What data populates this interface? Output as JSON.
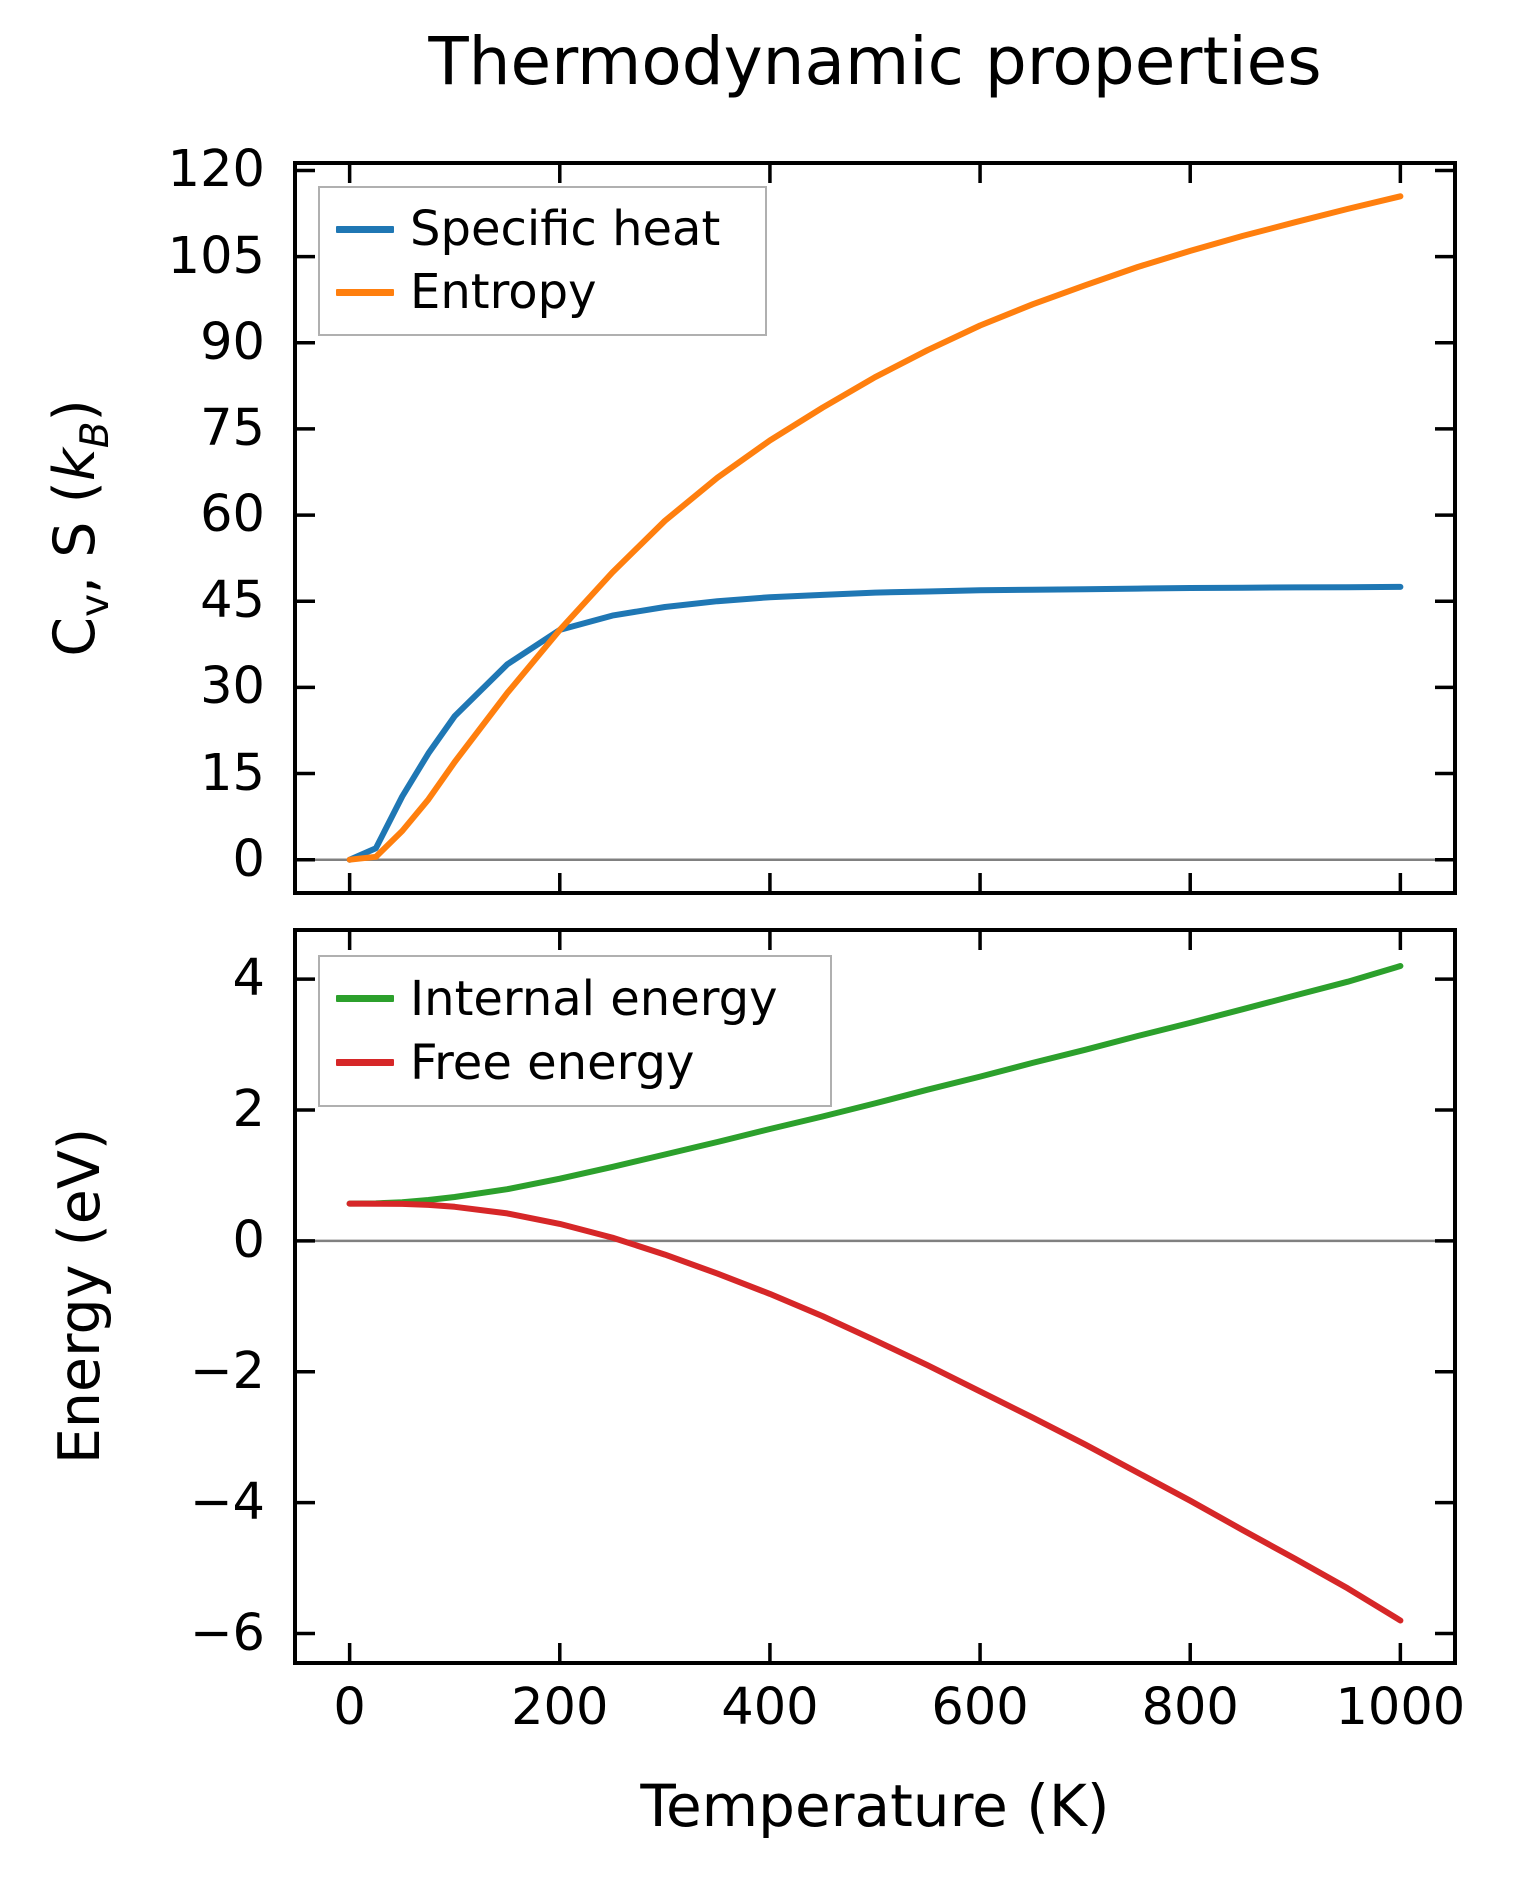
{
  "figure": {
    "title": "Thermodynamic properties",
    "xlabel": "Temperature (K)",
    "background": "#ffffff",
    "spine_color": "#000000",
    "zero_line_color": "#808080"
  },
  "chart_data": [
    {
      "type": "line",
      "panel": "top",
      "ylabel": "Cv, S (kB)",
      "ylabel_rich": [
        {
          "t": "C"
        },
        {
          "t": "v",
          "sub": true
        },
        {
          "t": ", S ("
        },
        {
          "t": "k",
          "ital": true
        },
        {
          "t": "B",
          "sub": true,
          "ital": true
        },
        {
          "t": ")"
        }
      ],
      "x": [
        0,
        25,
        50,
        75,
        100,
        150,
        200,
        250,
        300,
        350,
        400,
        450,
        500,
        550,
        600,
        650,
        700,
        750,
        800,
        850,
        900,
        950,
        1000
      ],
      "series": [
        {
          "name": "Specific heat",
          "color": "#1f77b4",
          "values": [
            0,
            2,
            11,
            18.5,
            25,
            34,
            40,
            42.5,
            44,
            45,
            45.7,
            46.1,
            46.5,
            46.7,
            46.9,
            47,
            47.1,
            47.2,
            47.3,
            47.35,
            47.4,
            47.45,
            47.5
          ]
        },
        {
          "name": "Entropy",
          "color": "#ff7f0e",
          "values": [
            0,
            0.5,
            5,
            10.5,
            17,
            29,
            40,
            50,
            59,
            66.5,
            73,
            78.7,
            84,
            88.7,
            93,
            96.7,
            100,
            103.2,
            106,
            108.6,
            111,
            113.3,
            115.5
          ]
        }
      ],
      "xlim": [
        -52,
        1052
      ],
      "ylim": [
        -5.8,
        121.3
      ],
      "xticks": [
        0,
        200,
        400,
        600,
        800,
        1000
      ],
      "xticklabels": [
        "0",
        "200",
        "400",
        "600",
        "800",
        "1000"
      ],
      "show_xticklabels": false,
      "yticks": [
        0,
        15,
        30,
        45,
        60,
        75,
        90,
        105,
        120
      ],
      "yticklabels": [
        "0",
        "15",
        "30",
        "45",
        "60",
        "75",
        "90",
        "105",
        "120"
      ],
      "legend_position": "upper-left",
      "zero_line": true,
      "grid": false
    },
    {
      "type": "line",
      "panel": "bottom",
      "ylabel": "Energy (eV)",
      "x": [
        0,
        25,
        50,
        75,
        100,
        150,
        200,
        250,
        300,
        350,
        400,
        450,
        500,
        550,
        600,
        650,
        700,
        750,
        800,
        850,
        900,
        950,
        1000
      ],
      "series": [
        {
          "name": "Internal energy",
          "color": "#2ca02c",
          "values": [
            0.57,
            0.572,
            0.59,
            0.625,
            0.67,
            0.79,
            0.95,
            1.13,
            1.32,
            1.51,
            1.71,
            1.9,
            2.1,
            2.31,
            2.51,
            2.72,
            2.92,
            3.13,
            3.33,
            3.54,
            3.75,
            3.96,
            4.2
          ]
        },
        {
          "name": "Free energy",
          "color": "#d62728",
          "values": [
            0.57,
            0.568,
            0.565,
            0.55,
            0.52,
            0.42,
            0.26,
            0.05,
            -0.21,
            -0.5,
            -0.81,
            -1.15,
            -1.52,
            -1.9,
            -2.3,
            -2.7,
            -3.11,
            -3.54,
            -3.97,
            -4.42,
            -4.86,
            -5.31,
            -5.8
          ]
        }
      ],
      "xlim": [
        -52,
        1052
      ],
      "ylim": [
        -6.45,
        4.75
      ],
      "xticks": [
        0,
        200,
        400,
        600,
        800,
        1000
      ],
      "xticklabels": [
        "0",
        "200",
        "400",
        "600",
        "800",
        "1000"
      ],
      "show_xticklabels": true,
      "yticks": [
        -6,
        -4,
        -2,
        0,
        2,
        4
      ],
      "yticklabels": [
        "−6",
        "−4",
        "−2",
        "0",
        "2",
        "4"
      ],
      "legend_position": "upper-left",
      "zero_line": true,
      "grid": false
    }
  ]
}
